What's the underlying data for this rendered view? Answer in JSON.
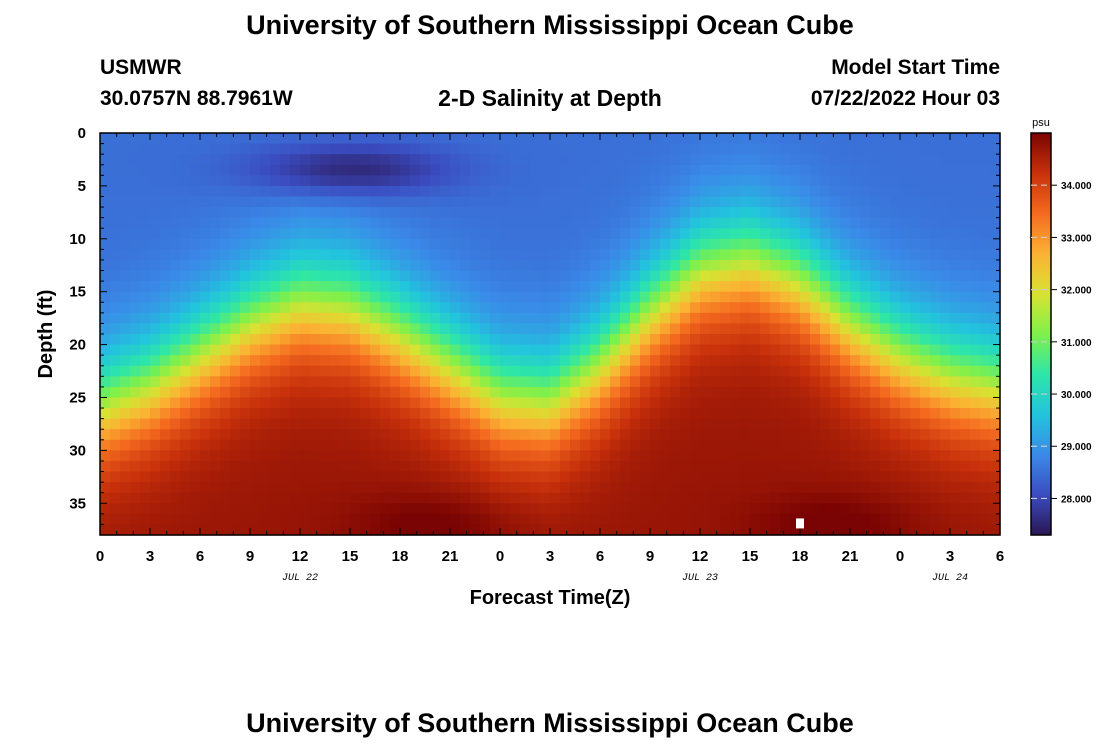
{
  "header": {
    "title": "University of Southern Mississippi Ocean Cube",
    "station": "USMWR",
    "coords": "30.0757N  88.7961W",
    "subtitle": "2-D Salinity at Depth",
    "model_label": "Model Start Time",
    "model_time": "07/22/2022 Hour 03"
  },
  "footer": {
    "title": "University of Southern Mississippi Ocean Cube"
  },
  "chart_data": {
    "type": "heatmap",
    "title": "2-D Salinity at Depth",
    "xlabel": "Forecast Time(Z)",
    "ylabel": "Depth (ft)",
    "x_ticks": [
      "0",
      "3",
      "6",
      "9",
      "12",
      "15",
      "18",
      "21",
      "0",
      "3",
      "6",
      "9",
      "12",
      "15",
      "18",
      "21",
      "0",
      "3",
      "6"
    ],
    "x_date_labels": [
      {
        "label": "JUL 22",
        "hour_index": 12
      },
      {
        "label": "JUL 23",
        "hour_index": 36
      },
      {
        "label": "JUL 24",
        "hour_index": 51
      }
    ],
    "x_range_hours": [
      0,
      54
    ],
    "y_ticks": [
      0,
      5,
      10,
      15,
      20,
      25,
      30,
      35
    ],
    "ylim": [
      0,
      38
    ],
    "y_inverted": true,
    "colorbar": {
      "unit": "psu",
      "ticks": [
        "34.000",
        "33.000",
        "32.000",
        "31.000",
        "30.000",
        "29.000",
        "28.000"
      ],
      "range": [
        27.3,
        35.0
      ],
      "colors": [
        "#2a1654",
        "#3b4cc0",
        "#3a8ae8",
        "#22c4dd",
        "#2de6a8",
        "#7ff04a",
        "#d8e232",
        "#fbb233",
        "#f46a1f",
        "#c8310b",
        "#7a0403"
      ]
    },
    "surface_salinity": 28.5,
    "bottom_salinity": 34.7,
    "halocline_depth_ft_by_hour": [
      [
        0,
        26
      ],
      [
        3,
        24
      ],
      [
        6,
        21
      ],
      [
        9,
        18
      ],
      [
        12,
        16
      ],
      [
        15,
        16.5
      ],
      [
        18,
        19
      ],
      [
        21,
        22
      ],
      [
        24,
        25
      ],
      [
        27,
        25.5
      ],
      [
        30,
        22
      ],
      [
        33,
        17
      ],
      [
        36,
        13
      ],
      [
        39,
        12
      ],
      [
        42,
        14
      ],
      [
        45,
        18
      ],
      [
        48,
        21
      ],
      [
        51,
        23
      ],
      [
        54,
        24
      ]
    ],
    "marker": {
      "hour": 42,
      "depth_ft": 37
    }
  }
}
